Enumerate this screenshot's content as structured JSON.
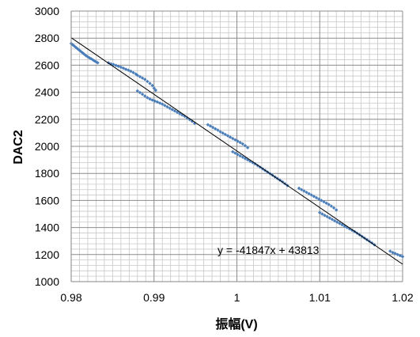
{
  "chart_data": {
    "type": "scatter",
    "xlabel": "振幅(V)",
    "ylabel": "DAC2",
    "xlim": [
      0.98,
      1.02
    ],
    "ylim": [
      1000,
      3000
    ],
    "x_ticks": [
      "0.98",
      "0.99",
      "1",
      "1.01",
      "1.02"
    ],
    "y_ticks": [
      "1000",
      "1200",
      "1400",
      "1600",
      "1800",
      "2000",
      "2200",
      "2400",
      "2600",
      "2800",
      "3000"
    ],
    "grid": true,
    "trendline": {
      "type": "linear",
      "slope": -41847,
      "intercept": 43813,
      "equation_label": "y = -41847x + 43813"
    },
    "series": [
      {
        "color": "#4a7ebb",
        "marker": "diamond",
        "points": [
          [
            0.98,
            2760
          ],
          [
            0.9802,
            2750
          ],
          [
            0.9804,
            2740
          ],
          [
            0.9806,
            2730
          ],
          [
            0.9808,
            2720
          ],
          [
            0.981,
            2710
          ],
          [
            0.9812,
            2700
          ],
          [
            0.9814,
            2690
          ],
          [
            0.9816,
            2680
          ],
          [
            0.9818,
            2670
          ],
          [
            0.982,
            2662
          ],
          [
            0.9822,
            2654
          ],
          [
            0.9824,
            2648
          ],
          [
            0.9826,
            2640
          ],
          [
            0.9828,
            2632
          ],
          [
            0.983,
            2625
          ],
          [
            0.9832,
            2618
          ],
          [
            0.9845,
            2618
          ],
          [
            0.9848,
            2610
          ],
          [
            0.9851,
            2605
          ],
          [
            0.9854,
            2598
          ],
          [
            0.9857,
            2592
          ],
          [
            0.986,
            2585
          ],
          [
            0.9863,
            2578
          ],
          [
            0.9866,
            2570
          ],
          [
            0.9869,
            2563
          ],
          [
            0.9872,
            2555
          ],
          [
            0.9875,
            2545
          ],
          [
            0.9878,
            2535
          ],
          [
            0.988,
            2525
          ],
          [
            0.9883,
            2515
          ],
          [
            0.9886,
            2505
          ],
          [
            0.9889,
            2495
          ],
          [
            0.9892,
            2480
          ],
          [
            0.9895,
            2465
          ],
          [
            0.9898,
            2450
          ],
          [
            0.99,
            2430
          ],
          [
            0.9902,
            2415
          ],
          [
            0.988,
            2410
          ],
          [
            0.9883,
            2398
          ],
          [
            0.9886,
            2385
          ],
          [
            0.9889,
            2372
          ],
          [
            0.9892,
            2360
          ],
          [
            0.9895,
            2350
          ],
          [
            0.9898,
            2342
          ],
          [
            0.9901,
            2335
          ],
          [
            0.9904,
            2328
          ],
          [
            0.9907,
            2320
          ],
          [
            0.991,
            2312
          ],
          [
            0.9913,
            2302
          ],
          [
            0.9916,
            2292
          ],
          [
            0.9919,
            2282
          ],
          [
            0.9922,
            2272
          ],
          [
            0.9925,
            2262
          ],
          [
            0.9928,
            2252
          ],
          [
            0.9931,
            2242
          ],
          [
            0.9934,
            2232
          ],
          [
            0.9937,
            2222
          ],
          [
            0.994,
            2210
          ],
          [
            0.9943,
            2198
          ],
          [
            0.9946,
            2185
          ],
          [
            0.9949,
            2170
          ],
          [
            0.9965,
            2160
          ],
          [
            0.9968,
            2150
          ],
          [
            0.9971,
            2140
          ],
          [
            0.9974,
            2130
          ],
          [
            0.9977,
            2120
          ],
          [
            0.998,
            2108
          ],
          [
            0.9983,
            2098
          ],
          [
            0.9986,
            2088
          ],
          [
            0.9989,
            2078
          ],
          [
            0.9992,
            2068
          ],
          [
            0.9995,
            2058
          ],
          [
            0.9998,
            2048
          ],
          [
            1.0001,
            2038
          ],
          [
            1.0004,
            2028
          ],
          [
            1.0007,
            2018
          ],
          [
            1.001,
            2005
          ],
          [
            1.0013,
            1990
          ],
          [
            0.9995,
            1960
          ],
          [
            0.9998,
            1950
          ],
          [
            1.0001,
            1940
          ],
          [
            1.0004,
            1930
          ],
          [
            1.0007,
            1920
          ],
          [
            1.001,
            1910
          ],
          [
            1.0013,
            1900
          ],
          [
            1.0016,
            1890
          ],
          [
            1.0019,
            1880
          ],
          [
            1.0022,
            1870
          ],
          [
            1.0025,
            1858
          ],
          [
            1.0028,
            1846
          ],
          [
            1.0031,
            1834
          ],
          [
            1.0034,
            1822
          ],
          [
            1.0037,
            1810
          ],
          [
            1.004,
            1798
          ],
          [
            1.0043,
            1786
          ],
          [
            1.0046,
            1774
          ],
          [
            1.0049,
            1762
          ],
          [
            1.0052,
            1750
          ],
          [
            1.0055,
            1738
          ],
          [
            1.0058,
            1724
          ],
          [
            1.0061,
            1710
          ],
          [
            1.0075,
            1690
          ],
          [
            1.0078,
            1680
          ],
          [
            1.0081,
            1670
          ],
          [
            1.0084,
            1660
          ],
          [
            1.0087,
            1650
          ],
          [
            1.009,
            1640
          ],
          [
            1.0093,
            1630
          ],
          [
            1.0096,
            1620
          ],
          [
            1.0099,
            1610
          ],
          [
            1.0102,
            1600
          ],
          [
            1.0105,
            1590
          ],
          [
            1.0108,
            1580
          ],
          [
            1.0111,
            1570
          ],
          [
            1.0114,
            1558
          ],
          [
            1.0117,
            1545
          ],
          [
            1.012,
            1530
          ],
          [
            1.01,
            1510
          ],
          [
            1.0103,
            1500
          ],
          [
            1.0106,
            1490
          ],
          [
            1.0109,
            1480
          ],
          [
            1.0112,
            1470
          ],
          [
            1.0115,
            1460
          ],
          [
            1.0118,
            1450
          ],
          [
            1.0121,
            1440
          ],
          [
            1.0124,
            1430
          ],
          [
            1.0127,
            1420
          ],
          [
            1.013,
            1410
          ],
          [
            1.0133,
            1400
          ],
          [
            1.0136,
            1390
          ],
          [
            1.0139,
            1380
          ],
          [
            1.0142,
            1370
          ],
          [
            1.0145,
            1358
          ],
          [
            1.0148,
            1346
          ],
          [
            1.0151,
            1334
          ],
          [
            1.0154,
            1322
          ],
          [
            1.0157,
            1310
          ],
          [
            1.016,
            1298
          ],
          [
            1.0163,
            1286
          ],
          [
            1.0166,
            1272
          ],
          [
            1.0185,
            1225
          ],
          [
            1.0188,
            1215
          ],
          [
            1.0191,
            1208
          ],
          [
            1.0194,
            1200
          ],
          [
            1.0197,
            1192
          ],
          [
            1.02,
            1185
          ]
        ]
      }
    ]
  }
}
